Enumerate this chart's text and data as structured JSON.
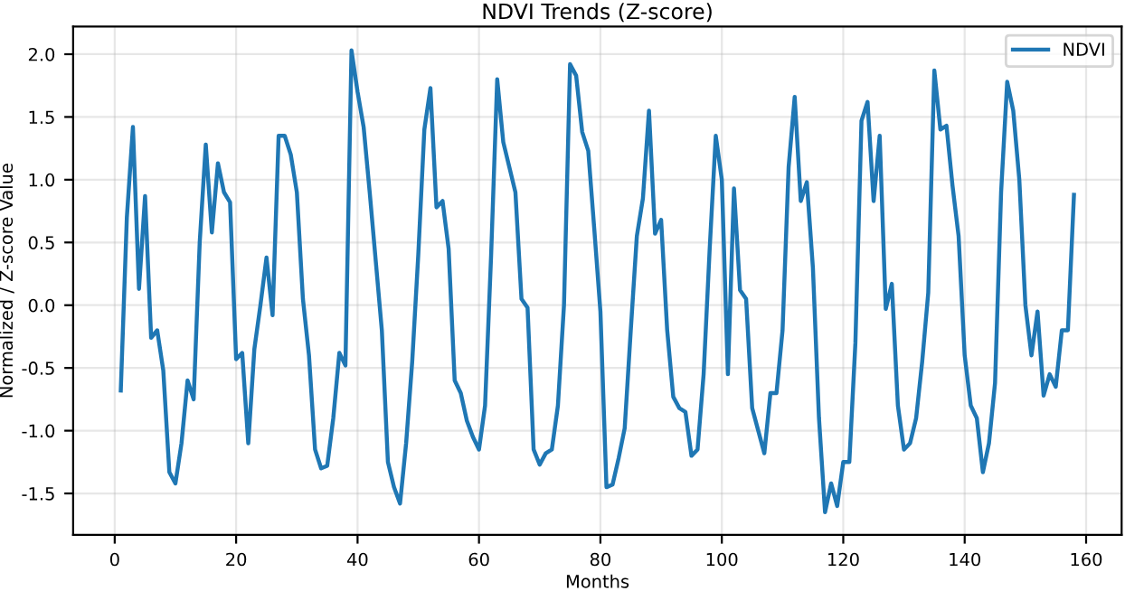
{
  "chart_data": {
    "type": "line",
    "title": "NDVI Trends (Z-score)",
    "xlabel": "Months",
    "ylabel": "Normalized / Z-score Value",
    "x": [
      1,
      2,
      3,
      4,
      5,
      6,
      7,
      8,
      9,
      10,
      11,
      12,
      13,
      14,
      15,
      16,
      17,
      18,
      19,
      20,
      21,
      22,
      23,
      24,
      25,
      26,
      27,
      28,
      29,
      30,
      31,
      32,
      33,
      34,
      35,
      36,
      37,
      38,
      39,
      40,
      41,
      42,
      43,
      44,
      45,
      46,
      47,
      48,
      49,
      50,
      51,
      52,
      53,
      54,
      55,
      56,
      57,
      58,
      59,
      60,
      61,
      62,
      63,
      64,
      65,
      66,
      67,
      68,
      69,
      70,
      71,
      72,
      73,
      74,
      75,
      76,
      77,
      78,
      79,
      80,
      81,
      82,
      83,
      84,
      85,
      86,
      87,
      88,
      89,
      90,
      91,
      92,
      93,
      94,
      95,
      96,
      97,
      98,
      99,
      100,
      101,
      102,
      103,
      104,
      105,
      106,
      107,
      108,
      109,
      110,
      111,
      112,
      113,
      114,
      115,
      116,
      117,
      118,
      119,
      120,
      121,
      122,
      123,
      124,
      125,
      126,
      127,
      128,
      129,
      130,
      131,
      132,
      133,
      134,
      135,
      136,
      137,
      138,
      139,
      140,
      141,
      142,
      143,
      144,
      145,
      146,
      147,
      148,
      149,
      150,
      151,
      152,
      153,
      154,
      155,
      156,
      157,
      158
    ],
    "series": [
      {
        "name": "NDVI",
        "color": "#1f77b4",
        "values": [
          -0.68,
          0.7,
          1.42,
          0.13,
          0.87,
          -0.26,
          -0.2,
          -0.52,
          -1.33,
          -1.42,
          -1.1,
          -0.6,
          -0.75,
          0.5,
          1.28,
          0.58,
          1.13,
          0.9,
          0.82,
          -0.43,
          -0.38,
          -1.1,
          -0.35,
          0.0,
          0.38,
          -0.08,
          1.35,
          1.35,
          1.2,
          0.9,
          0.05,
          -0.4,
          -1.15,
          -1.3,
          -1.28,
          -0.9,
          -0.38,
          -0.48,
          2.03,
          1.7,
          1.42,
          0.9,
          0.35,
          -0.2,
          -1.25,
          -1.45,
          -1.58,
          -1.1,
          -0.45,
          0.4,
          1.4,
          1.73,
          0.78,
          0.83,
          0.45,
          -0.6,
          -0.7,
          -0.92,
          -1.05,
          -1.15,
          -0.8,
          0.4,
          1.8,
          1.3,
          1.1,
          0.9,
          0.05,
          -0.02,
          -1.15,
          -1.27,
          -1.18,
          -1.15,
          -0.8,
          0.0,
          1.92,
          1.83,
          1.38,
          1.23,
          0.6,
          -0.05,
          -1.45,
          -1.43,
          -1.22,
          -0.98,
          -0.2,
          0.55,
          0.85,
          1.55,
          0.57,
          0.68,
          -0.2,
          -0.73,
          -0.82,
          -0.85,
          -1.2,
          -1.15,
          -0.55,
          0.45,
          1.35,
          1.0,
          -0.55,
          0.93,
          0.12,
          0.05,
          -0.82,
          -1.0,
          -1.18,
          -0.7,
          -0.7,
          -0.2,
          1.1,
          1.66,
          0.83,
          0.98,
          0.3,
          -0.9,
          -1.65,
          -1.42,
          -1.6,
          -1.25,
          -1.25,
          -0.3,
          1.47,
          1.62,
          0.83,
          1.35,
          -0.03,
          0.17,
          -0.8,
          -1.15,
          -1.1,
          -0.9,
          -0.45,
          0.1,
          1.87,
          1.4,
          1.43,
          0.95,
          0.55,
          -0.4,
          -0.8,
          -0.9,
          -1.33,
          -1.1,
          -0.62,
          0.9,
          1.78,
          1.55,
          1.0,
          0.0,
          -0.4,
          -0.05,
          -0.72,
          -0.55,
          -0.65,
          -0.2,
          -0.2,
          0.88
        ]
      }
    ],
    "xlim": [
      -6.85,
      165.85
    ],
    "xticks": [
      0,
      20,
      40,
      60,
      80,
      100,
      120,
      140,
      160
    ],
    "ylim": [
      -1.83,
      2.22
    ],
    "yticks": [
      -1.5,
      {
        "value": -1,
        "label": "-1.0"
      },
      -0.5,
      {
        "value": 0,
        "label": "0.0"
      },
      0.5,
      {
        "value": 1,
        "label": "1.0"
      },
      1.5,
      {
        "value": 2,
        "label": "2.0"
      }
    ],
    "grid": true,
    "legend": "top right",
    "line_style": "solid",
    "marker": "none"
  }
}
